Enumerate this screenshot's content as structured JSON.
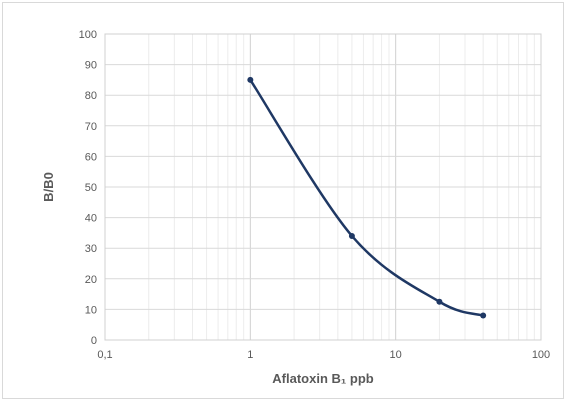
{
  "chart_data": {
    "type": "line",
    "title": "",
    "xlabel": "Aflatoxin B₁ ppb",
    "ylabel": "B/B0",
    "x_scale": "log",
    "xlim": [
      0.1,
      100
    ],
    "ylim": [
      0,
      100
    ],
    "x_ticks": [
      0.1,
      1,
      10,
      100
    ],
    "x_tick_labels": [
      "0,1",
      "1",
      "10",
      "100"
    ],
    "y_ticks": [
      0,
      10,
      20,
      30,
      40,
      50,
      60,
      70,
      80,
      90,
      100
    ],
    "y_tick_labels": [
      "0",
      "10",
      "20",
      "30",
      "40",
      "50",
      "60",
      "70",
      "80",
      "90",
      "100"
    ],
    "grid": true,
    "series": [
      {
        "x": [
          1,
          5,
          20,
          40
        ],
        "y": [
          85,
          34,
          12.5,
          8
        ],
        "color": "#1f3864",
        "marker": "circle",
        "smooth": true
      }
    ]
  }
}
